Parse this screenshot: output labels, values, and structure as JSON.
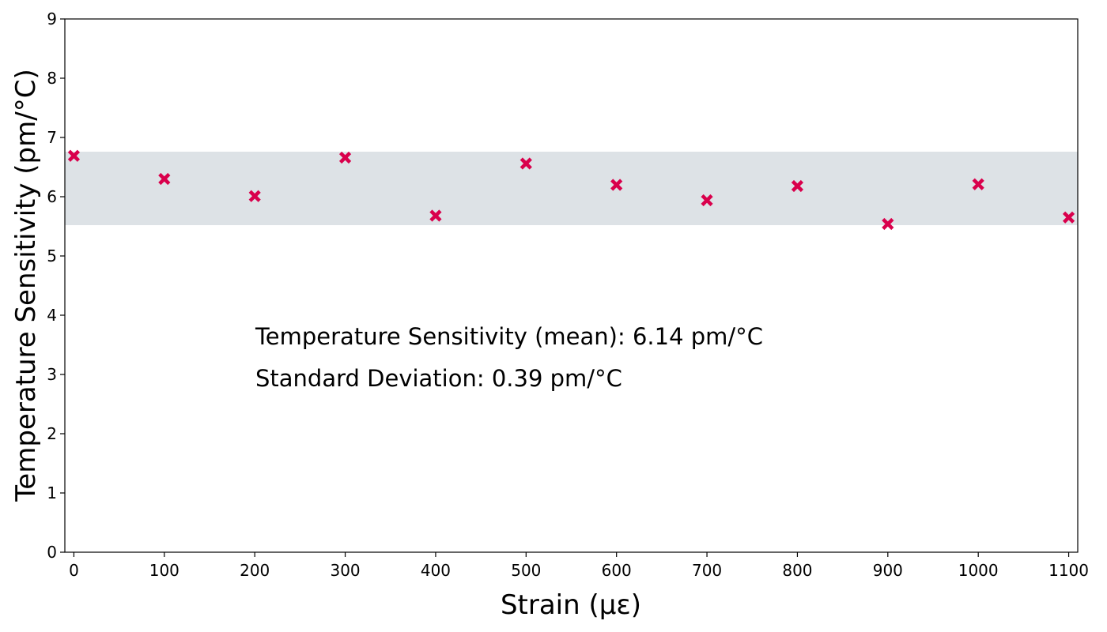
{
  "chart_data": {
    "type": "scatter",
    "title": "",
    "xlabel": "Strain (με)",
    "ylabel": "Temperature Sensitivity (pm/°C)",
    "xlim": [
      -10,
      1110
    ],
    "ylim": [
      0,
      9
    ],
    "xticks": [
      0,
      100,
      200,
      300,
      400,
      500,
      600,
      700,
      800,
      900,
      1000,
      1100
    ],
    "yticks": [
      0,
      1,
      2,
      3,
      4,
      5,
      6,
      7,
      8,
      9
    ],
    "grid": false,
    "marker": "x",
    "marker_color": "#d9004c",
    "band": {
      "lower": 5.52,
      "upper": 6.76,
      "color": "#dde2e6"
    },
    "series": [
      {
        "x": [
          0,
          100,
          200,
          300,
          400,
          500,
          600,
          700,
          800,
          900,
          1000,
          1100
        ],
        "y": [
          6.69,
          6.3,
          6.01,
          6.66,
          5.68,
          6.56,
          6.2,
          5.94,
          6.18,
          5.54,
          6.21,
          5.65
        ]
      }
    ],
    "annotations": [
      "Temperature Sensitivity (mean): 6.14 pm/°C",
      "Standard Deviation: 0.39 pm/°C"
    ]
  }
}
